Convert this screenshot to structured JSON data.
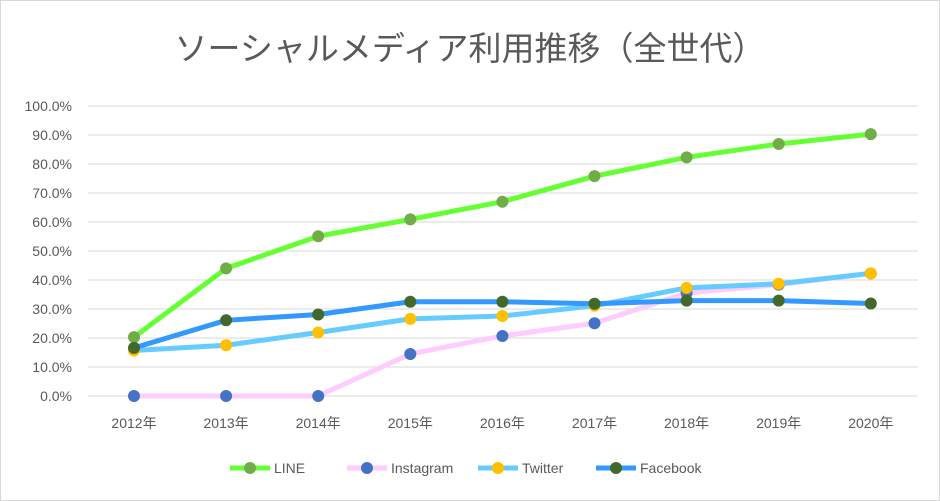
{
  "chart_data": {
    "type": "line",
    "title": "ソーシャルメディア利用推移（全世代）",
    "categories": [
      "2012年",
      "2013年",
      "2014年",
      "2015年",
      "2016年",
      "2017年",
      "2018年",
      "2019年",
      "2020年"
    ],
    "y_ticks": [
      "0.0%",
      "10.0%",
      "20.0%",
      "30.0%",
      "40.0%",
      "50.0%",
      "60.0%",
      "70.0%",
      "80.0%",
      "90.0%",
      "100.0%"
    ],
    "ylim": [
      0,
      100
    ],
    "grid": true,
    "legend_position": "bottom",
    "series": [
      {
        "name": "LINE",
        "line_color": "#66ff33",
        "marker_color": "#70ad47",
        "values": [
          20.3,
          44.0,
          55.1,
          60.9,
          67.0,
          75.8,
          82.3,
          86.9,
          90.3
        ]
      },
      {
        "name": "Instagram",
        "line_color": "#ffccff",
        "marker_color": "#4472c4",
        "values": [
          0.0,
          0.0,
          0.0,
          14.5,
          20.7,
          25.1,
          35.5,
          38.4,
          42.3
        ]
      },
      {
        "name": "Twitter",
        "line_color": "#66ccff",
        "marker_color": "#ffc000",
        "values": [
          15.7,
          17.5,
          21.9,
          26.6,
          27.6,
          31.1,
          37.3,
          38.7,
          42.3
        ]
      },
      {
        "name": "Facebook",
        "line_color": "#3399ff",
        "marker_color": "#43682b",
        "values": [
          16.6,
          26.1,
          28.1,
          32.5,
          32.5,
          31.8,
          32.9,
          32.9,
          31.9
        ]
      }
    ]
  }
}
